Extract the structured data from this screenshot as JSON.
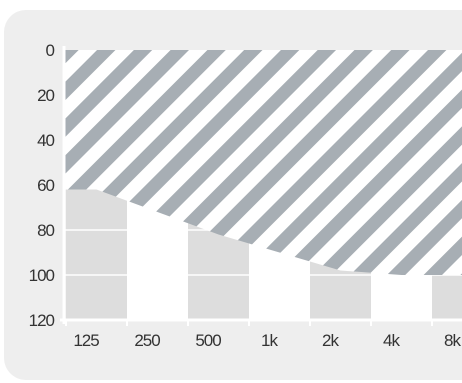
{
  "chart_data": {
    "type": "area",
    "title": "",
    "xlabel": "",
    "ylabel": "",
    "categories": [
      "125",
      "250",
      "500",
      "1k",
      "2k",
      "4k",
      "8k"
    ],
    "y_ticks": [
      "0",
      "20",
      "40",
      "60",
      "80",
      "100",
      "120"
    ],
    "ylim": [
      0,
      120
    ],
    "y_axis_inverted": true,
    "grid": true,
    "series": [
      {
        "values": [
          62,
          72,
          82,
          90,
          98,
          100,
          100
        ],
        "fill": "hatched",
        "filled_from": "top"
      }
    ],
    "colors": {
      "card_background": "#eeeeee",
      "column_light": "#ffffff",
      "column_dark": "#dddddd",
      "hatch_stripe": "#a7aeb4",
      "axis": "#ffffff",
      "tick_text": "#333333"
    }
  }
}
